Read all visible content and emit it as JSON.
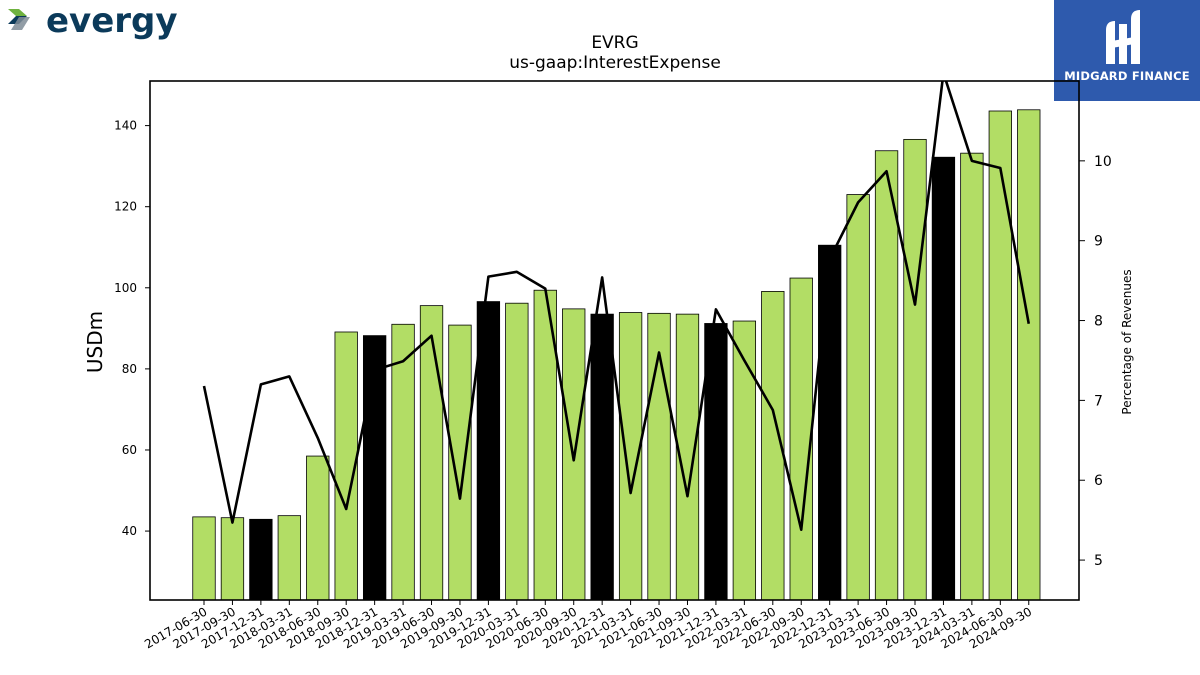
{
  "brand": {
    "name": "evergy",
    "colors": {
      "primary": "#0b3a5a",
      "accent": "#6fb23f",
      "chevron": "#7f8c96"
    }
  },
  "publisher": {
    "name": "MIDGARD FINANCE",
    "color": "#2e5aad"
  },
  "chart_data": {
    "type": "bar",
    "title": "EVRG",
    "subtitle": "us-gaap:InterestExpense",
    "ylabel": "USDm",
    "y2label": "Percentage of Revenues",
    "ylim": [
      23,
      151
    ],
    "y2lim": [
      4.5,
      11
    ],
    "yticks": [
      40,
      60,
      80,
      100,
      120,
      140
    ],
    "y2ticks": [
      5,
      6,
      7,
      8,
      9,
      10
    ],
    "grid": false,
    "categories": [
      "2017-06-30",
      "2017-09-30",
      "2017-12-31",
      "2018-03-31",
      "2018-06-30",
      "2018-09-30",
      "2018-12-31",
      "2019-03-31",
      "2019-06-30",
      "2019-09-30",
      "2019-12-31",
      "2020-03-31",
      "2020-06-30",
      "2020-09-30",
      "2020-12-31",
      "2021-03-31",
      "2021-06-30",
      "2021-09-30",
      "2021-12-31",
      "2022-03-31",
      "2022-06-30",
      "2022-09-30",
      "2022-12-31",
      "2023-03-31",
      "2023-06-30",
      "2023-09-30",
      "2023-12-31",
      "2024-03-31",
      "2024-06-30",
      "2024-09-30"
    ],
    "series": [
      {
        "type": "bar",
        "values": [
          43.5,
          43.3,
          42.9,
          43.8,
          58.5,
          89.1,
          88.2,
          91.0,
          95.6,
          90.8,
          96.6,
          96.2,
          99.4,
          94.8,
          93.5,
          93.9,
          93.7,
          93.5,
          91.2,
          91.8,
          99.1,
          102.4,
          110.5,
          123.0,
          133.8,
          136.6,
          132.2,
          133.2,
          143.6,
          143.9
        ]
      },
      {
        "type": "line",
        "axis": "right",
        "values": [
          7.18,
          5.47,
          7.2,
          7.3,
          6.53,
          5.64,
          7.38,
          7.49,
          7.81,
          5.77,
          8.55,
          8.61,
          8.4,
          6.25,
          8.54,
          5.84,
          7.6,
          5.8,
          8.14,
          7.5,
          6.88,
          5.38,
          8.77,
          9.48,
          9.87,
          8.2,
          11.1,
          10.0,
          9.91,
          7.96
        ]
      }
    ],
    "year_end_color": "#000000",
    "bar_color": "#b2dd65",
    "line_color": "#000000"
  }
}
